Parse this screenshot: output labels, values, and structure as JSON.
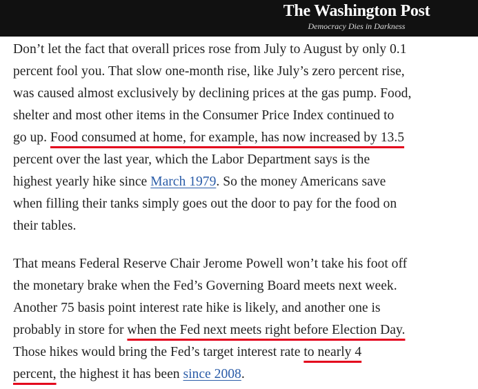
{
  "header": {
    "logo": "The Washington Post",
    "tagline": "Democracy Dies in Darkness"
  },
  "article": {
    "paragraphs": [
      [
        [
          "Don’t let the fact that overall prices rose from July to August by only 0.1"
        ],
        [
          "percent fool you. That slow one-month rise, like July’s zero percent rise,"
        ],
        [
          "was caused almost exclusively by declining prices at the gas pump. Food,"
        ],
        [
          "shelter and most other items in the Consumer Price Index continued to"
        ],
        [
          "go up. ",
          "Food consumed at home, for example, has now increased by 13.5"
        ],
        [
          "percent over the last year, which the Labor Department says is the"
        ],
        [
          "highest yearly hike since ",
          "March 1979",
          ". So the money Americans save"
        ],
        [
          "when filling their tanks simply goes out the door to pay for the food on"
        ],
        [
          "their tables."
        ]
      ],
      [
        [
          "That means Federal Reserve Chair Jerome Powell won’t take his foot off"
        ],
        [
          "the monetary brake when the Fed’s Governing Board meets next week."
        ],
        [
          "Another 75 basis point interest rate hike is likely, and another one is"
        ],
        [
          "probably in store for ",
          "when the Fed next meets right before Election Day."
        ],
        [
          "Those hikes would bring the Fed’s target interest rate ",
          "to nearly 4"
        ],
        [
          "percent,",
          " the highest it has been ",
          "since 2008",
          "."
        ]
      ]
    ]
  }
}
